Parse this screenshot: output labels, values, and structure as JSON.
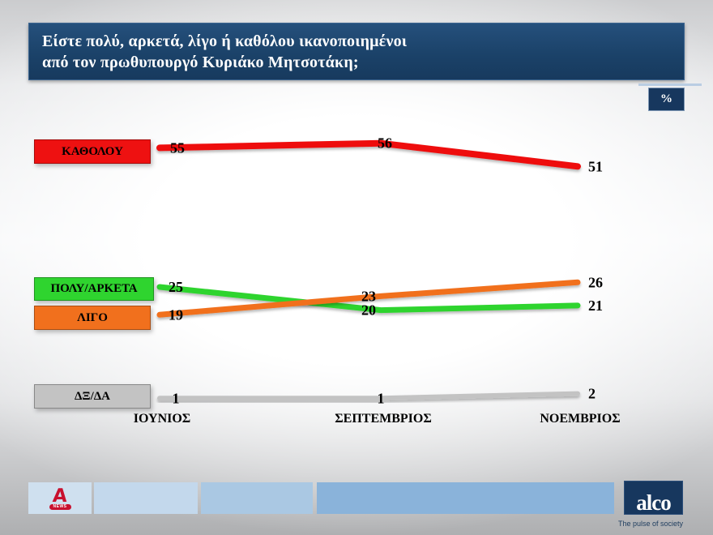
{
  "header": {
    "title_line1": "Είστε πολύ, αρκετά, λίγο ή καθόλου ικανοποιημένοι",
    "title_line2": "από τον πρωθυπουργό Κυριάκο Μητσοτάκη;",
    "unit_badge": "%"
  },
  "chart_data": {
    "type": "line",
    "title": "Είστε πολύ, αρκετά, λίγο ή καθόλου ικανοποιημένοι από τον πρωθυπουργό Κυριάκο Μητσοτάκη;",
    "unit": "%",
    "categories": [
      "ΙΟΥΝΙΟΣ",
      "ΣΕΠΤΕΜΒΡΙΟΣ",
      "ΝΟΕΜΒΡΙΟΣ"
    ],
    "series": [
      {
        "name": "ΚΑΘΟΛΟΥ",
        "color": "#ee1111",
        "values": [
          55,
          56,
          51
        ]
      },
      {
        "name": "ΠΟΛΥ/ΑΡΚΕΤΑ",
        "color": "#2fd42f",
        "values": [
          25,
          20,
          21
        ]
      },
      {
        "name": "ΛΙΓΟ",
        "color": "#f1701d",
        "values": [
          19,
          23,
          26
        ]
      },
      {
        "name": "ΔΞ/ΔΑ",
        "color": "#c3c3c3",
        "values": [
          1,
          1,
          2
        ]
      }
    ],
    "ylim": [
      0,
      60
    ],
    "grid": false,
    "legend_position": "left",
    "value_labels": true
  },
  "footer": {
    "channel_logo": {
      "letter": "A",
      "badge": "NEWS"
    },
    "agency_logo": {
      "name": "alco",
      "tagline": "The pulse of society"
    }
  }
}
